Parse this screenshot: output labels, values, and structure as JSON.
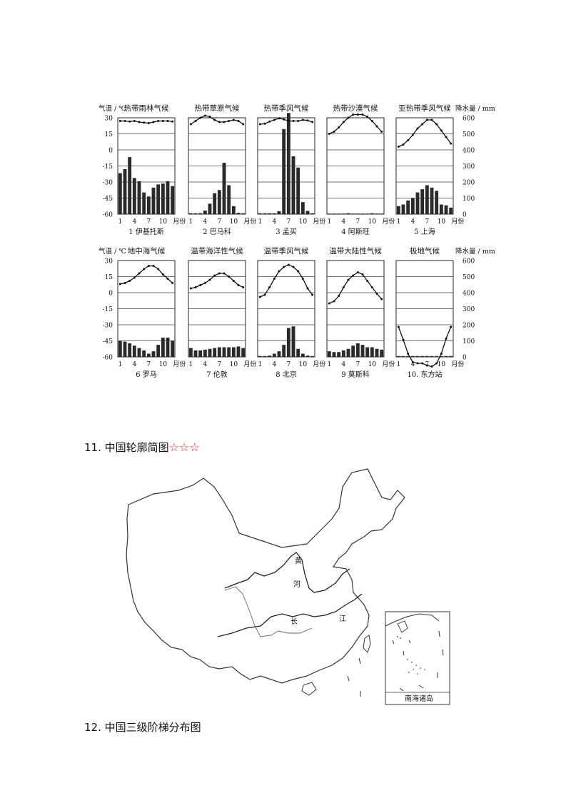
{
  "climate_figure": {
    "temp_axis_label": "气温 / ℃",
    "precip_axis_label": "降水量 / mm",
    "month_unit": "月份",
    "temp_ticks": [
      "30",
      "15",
      "0",
      "-15",
      "-30",
      "-45",
      "-60"
    ],
    "precip_ticks": [
      "600",
      "500",
      "400",
      "300",
      "200",
      "100",
      "0"
    ],
    "month_ticks": [
      "1",
      "4",
      "7",
      "10"
    ]
  },
  "chart_data": [
    {
      "type": "bar+line",
      "title": "热带雨林气候",
      "caption": "1 伊基托斯",
      "temp": [
        27,
        27,
        26.5,
        27,
        26,
        25.5,
        25,
        26,
        27,
        27,
        27,
        26.5
      ],
      "precip": [
        255,
        280,
        355,
        225,
        205,
        135,
        110,
        165,
        185,
        190,
        205,
        175
      ]
    },
    {
      "type": "bar+line",
      "title": "热带草原气候",
      "caption": "2 巴马科",
      "temp": [
        24,
        27,
        30,
        32,
        31,
        28,
        26,
        26,
        27,
        28,
        27,
        24
      ],
      "precip": [
        1,
        3,
        6,
        22,
        65,
        130,
        150,
        320,
        180,
        50,
        8,
        1
      ]
    },
    {
      "type": "bar+line",
      "title": "热带季风气候",
      "caption": "3 孟买",
      "temp": [
        24,
        24.5,
        26.5,
        28,
        29.5,
        28.5,
        27,
        27,
        27,
        28,
        27.5,
        26
      ],
      "precip": [
        2,
        1,
        2,
        2,
        18,
        530,
        630,
        360,
        290,
        75,
        20,
        5
      ]
    },
    {
      "type": "bar+line",
      "title": "热带沙漠气候",
      "caption": "4 阿斯旺",
      "temp": [
        15,
        17,
        21,
        26,
        30,
        33,
        33,
        33,
        31,
        27,
        22,
        17
      ],
      "precip": [
        0,
        0,
        0,
        0,
        2,
        0,
        0,
        0,
        0,
        1,
        0,
        0
      ]
    },
    {
      "type": "bar+line",
      "title": "亚热带季风气候",
      "caption": "5 上海",
      "temp": [
        3,
        5,
        9,
        14,
        20,
        24,
        28,
        28,
        24,
        18,
        12,
        6
      ],
      "precip": [
        50,
        60,
        85,
        100,
        135,
        155,
        180,
        165,
        145,
        60,
        55,
        40
      ]
    },
    {
      "type": "bar+line",
      "title": "地中海气候",
      "caption": "6 罗马",
      "temp": [
        8,
        9,
        11,
        14,
        18,
        22,
        25,
        25,
        22,
        17,
        13,
        9
      ],
      "precip": [
        100,
        95,
        85,
        70,
        55,
        40,
        20,
        35,
        75,
        120,
        120,
        100
      ]
    },
    {
      "type": "bar+line",
      "title": "温带海洋性气候",
      "caption": "7 伦敦",
      "temp": [
        4,
        5,
        7,
        9,
        12,
        16,
        18,
        18,
        15,
        11,
        7,
        5
      ],
      "precip": [
        55,
        40,
        40,
        45,
        50,
        55,
        60,
        60,
        60,
        60,
        65,
        55
      ]
    },
    {
      "type": "bar+line",
      "title": "温带季风气候",
      "caption": "8 北京",
      "temp": [
        -4,
        -2,
        5,
        13,
        20,
        24,
        26,
        24,
        20,
        13,
        4,
        -2
      ],
      "precip": [
        3,
        5,
        8,
        20,
        35,
        75,
        180,
        190,
        50,
        20,
        8,
        3
      ]
    },
    {
      "type": "bar+line",
      "title": "温带大陆性气候",
      "caption": "9 莫斯科",
      "temp": [
        -10,
        -8,
        -3,
        5,
        12,
        16,
        19,
        17,
        11,
        5,
        -1,
        -6
      ],
      "precip": [
        35,
        30,
        30,
        40,
        50,
        70,
        85,
        75,
        60,
        60,
        50,
        45
      ]
    },
    {
      "type": "bar+line",
      "title": "极地气候",
      "caption": "10. 东方站",
      "temp": [
        -32,
        -44,
        -57,
        -65,
        -66,
        -66,
        -68,
        -69,
        -66,
        -57,
        -43,
        -32
      ],
      "precip": [
        1,
        1,
        2,
        2,
        3,
        2,
        3,
        3,
        2,
        2,
        1,
        1
      ]
    }
  ],
  "headings": {
    "h11_text": "11. 中国轮廓简图",
    "h11_stars": "☆☆☆",
    "h12_text": "12. 中国三级阶梯分布图"
  },
  "china_map": {
    "label_huang_1": "黄",
    "label_huang_2": "河",
    "label_chang_1": "长",
    "label_chang_2": "江",
    "inset_caption": "南海诸岛"
  }
}
